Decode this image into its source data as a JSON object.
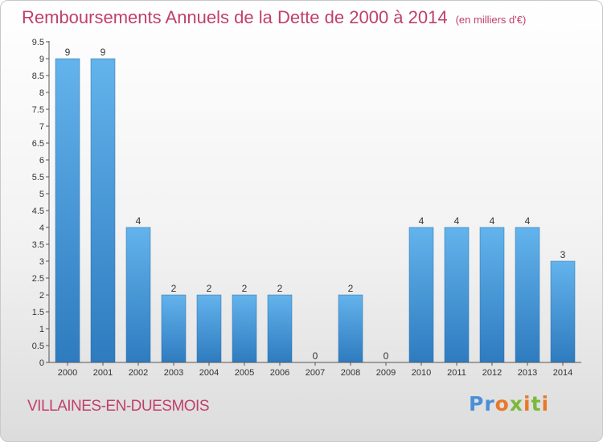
{
  "header": {
    "title": "Remboursements Annuels de la Dette de 2000 à 2014",
    "unit": "(en milliers d'€)"
  },
  "footer": {
    "town": "VILLAINES-EN-DUESMOIS",
    "logo": "Proxiti"
  },
  "colors": {
    "title": "#c0406a",
    "bar_light": "#63b3ec",
    "bar_dark": "#2e7bbf"
  },
  "chart_data": {
    "type": "bar",
    "title": "Remboursements Annuels de la Dette de 2000 à 2014",
    "xlabel": "",
    "ylabel": "",
    "categories": [
      "2000",
      "2001",
      "2002",
      "2003",
      "2004",
      "2005",
      "2006",
      "2007",
      "2008",
      "2009",
      "2010",
      "2011",
      "2012",
      "2013",
      "2014"
    ],
    "values": [
      9,
      9,
      4,
      2,
      2,
      2,
      2,
      0,
      2,
      0,
      4,
      4,
      4,
      4,
      3
    ],
    "value_labels": [
      "9",
      "9",
      "4",
      "2",
      "2",
      "2",
      "2",
      "0",
      "2",
      "0",
      "4",
      "4",
      "4",
      "4",
      "3"
    ],
    "ylim": [
      0,
      9.5
    ],
    "yticks": [
      {
        "value": 0,
        "label": "0"
      },
      {
        "value": 0.5,
        "label": "0.5"
      },
      {
        "value": 1,
        "label": "1"
      },
      {
        "value": 1.5,
        "label": "1.5"
      },
      {
        "value": 2,
        "label": "2"
      },
      {
        "value": 2.5,
        "label": "2.5"
      },
      {
        "value": 3,
        "label": "3"
      },
      {
        "value": 3.5,
        "label": "3.5"
      },
      {
        "value": 4,
        "label": "4"
      },
      {
        "value": 4.5,
        "label": "4.5"
      },
      {
        "value": 5,
        "label": "5"
      },
      {
        "value": 5.5,
        "label": "5.5"
      },
      {
        "value": 6,
        "label": "6"
      },
      {
        "value": 6.5,
        "label": "6.5"
      },
      {
        "value": 7,
        "label": "7"
      },
      {
        "value": 7.5,
        "label": "7.5"
      },
      {
        "value": 8,
        "label": "8"
      },
      {
        "value": 8.5,
        "label": "8.5"
      },
      {
        "value": 9,
        "label": "9"
      },
      {
        "value": 9.5,
        "label": "9.5"
      }
    ],
    "grid": false,
    "legend": "none"
  }
}
